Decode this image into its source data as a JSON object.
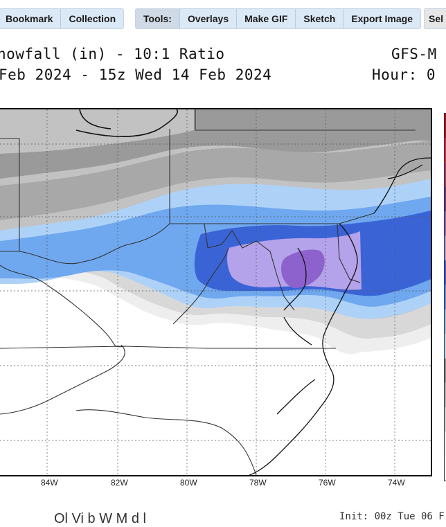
{
  "toolbar": {
    "group1": [
      "Bookmark",
      "Collection"
    ],
    "tools_label": "Tools:",
    "group2": [
      "Overlays",
      "Make GIF",
      "Sketch",
      "Export Image"
    ],
    "group3": [
      "Sel"
    ]
  },
  "title": {
    "line1_left": "nowfall (in) - 10:1 Ratio",
    "line1_right": "GFS-M",
    "line2_left": "Feb 2024 - 15z Wed 14 Feb 2024",
    "line2_right": "Hour: 0"
  },
  "map": {
    "longitude_ticks": [
      "84W",
      "82W",
      "80W",
      "78W",
      "76W",
      "74W"
    ]
  },
  "colorbar": {
    "colors": [
      "#ffffff",
      "#f4f4f4",
      "#d6d6d6",
      "#b4b4b4",
      "#8c8c8c",
      "#bddcff",
      "#8ec0f5",
      "#5a8ef0",
      "#3a5ed8",
      "#b39ae8",
      "#8f5fce",
      "#7a2a9a",
      "#b4306a",
      "#d8283a",
      "#b01010"
    ]
  },
  "footer": {
    "left": "Ol   Vi   b W  M   d  l",
    "right": "Init: 00z Tue 06 F"
  }
}
